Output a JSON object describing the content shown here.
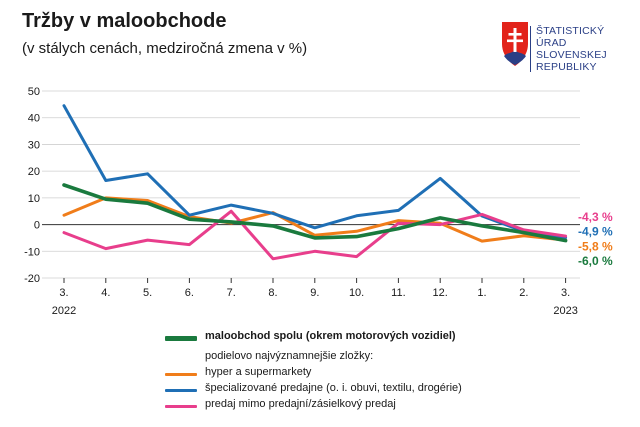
{
  "title": "Tržby v maloobchode",
  "subtitle": "(v stálych cenách, medziročná zmena v %)",
  "logo": {
    "lines": [
      "ŠTATISTICKÝ",
      "ÚRAD",
      "SLOVENSKEJ",
      "REPUBLIKY"
    ],
    "colors": {
      "red": "#e2231a",
      "blue": "#2a3f86",
      "white": "#ffffff"
    }
  },
  "chart_data": {
    "type": "line",
    "title": "Tržby v maloobchode",
    "subtitle": "(v stálych cenách, medziročná zmena v %)",
    "categories": [
      "3.",
      "4.",
      "5.",
      "6.",
      "7.",
      "8.",
      "9.",
      "10.",
      "11.",
      "12.",
      "1.",
      "2.",
      "3."
    ],
    "year_labels": [
      {
        "index": 0,
        "label": "2022"
      },
      {
        "index": 12,
        "label": "2023"
      }
    ],
    "ylim": [
      -20,
      50
    ],
    "yticks": [
      -20,
      -10,
      0,
      10,
      20,
      30,
      40,
      50
    ],
    "grid": true,
    "series": [
      {
        "key": "hyper",
        "name": "hyper a supermarkety",
        "color": "#f07d1a",
        "values": [
          3.5,
          10,
          9,
          3,
          0.5,
          4.5,
          -4,
          -2.5,
          1.5,
          0.5,
          -6.2,
          -4.2,
          -5.8
        ]
      },
      {
        "key": "spec",
        "name": "špecializované predajne (o. i. obuvi, textilu, drogérie)",
        "color": "#1f6fb5",
        "values": [
          44.5,
          16.5,
          19,
          3.5,
          7.3,
          4.2,
          -1.2,
          3.3,
          5.3,
          17.3,
          3.2,
          -2.5,
          -4.9
        ]
      },
      {
        "key": "mimo",
        "name": "predaj mimo predajní/zásielkový predaj",
        "color": "#e83e8c",
        "values": [
          -3,
          -9,
          -5.8,
          -7.5,
          5,
          -12.8,
          -10,
          -12,
          0.5,
          0,
          3.8,
          -2,
          -4.3
        ]
      },
      {
        "key": "total",
        "name": "maloobchod spolu (okrem motorových vozidiel)",
        "color": "#1a7a3e",
        "values": [
          14.8,
          9.5,
          8,
          2,
          1,
          -0.5,
          -5,
          -4.5,
          -1.5,
          2.5,
          -0.5,
          -3,
          -6
        ]
      }
    ],
    "end_labels": [
      {
        "text": "-4,3 %",
        "color": "#e83e8c"
      },
      {
        "text": "-4,9 %",
        "color": "#1f6fb5"
      },
      {
        "text": "-5,8 %",
        "color": "#f07d1a"
      },
      {
        "text": "-6,0 %",
        "color": "#1a7a3e"
      }
    ]
  },
  "legend": {
    "total": "maloobchod spolu (okrem motorových vozidiel)",
    "components_header": "podielovo najvýznamnejšie zložky:",
    "hyper": "hyper a supermarkety",
    "spec": "špecializované predajne (o. i. obuvi, textilu, drogérie)",
    "mimo": "predaj mimo predajní/zásielkový predaj"
  }
}
